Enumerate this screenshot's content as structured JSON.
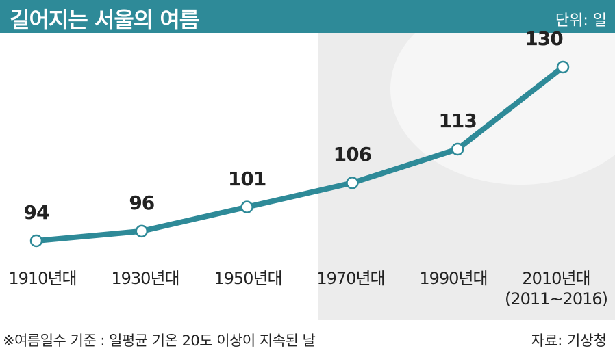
{
  "chart_data": {
    "type": "line",
    "title": "길어지는 서울의 여름",
    "unit": "단위: 일",
    "categories": [
      "1910년대",
      "1930년대",
      "1950년대",
      "1970년대",
      "1990년대",
      "2010년대\n(2011~2016)"
    ],
    "values": [
      94,
      96,
      101,
      106,
      113,
      130
    ],
    "color": "#2e8a98",
    "note": "※여름일수 기준 : 일평균 기온 20도 이상이 지속된 날",
    "source": "자료: 기상청"
  }
}
